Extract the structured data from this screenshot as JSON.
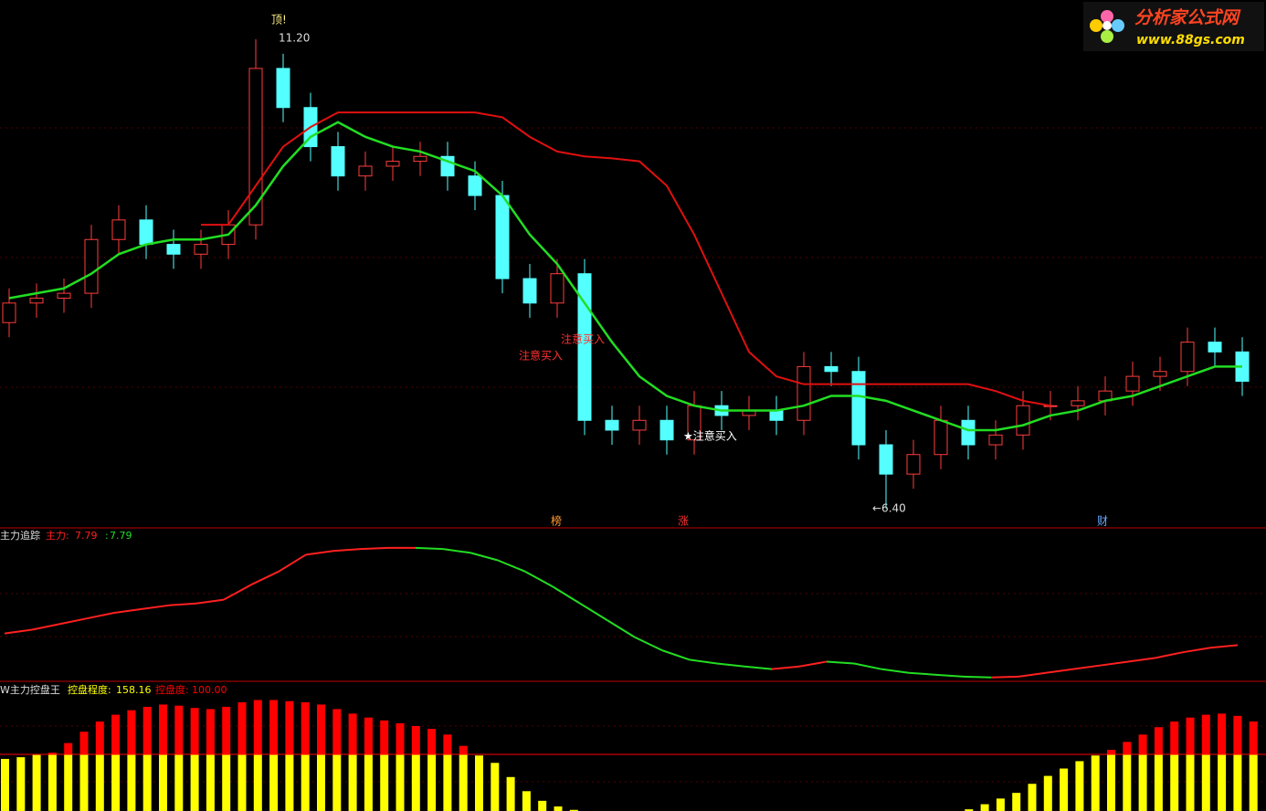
{
  "logo": {
    "title": "分析家公式网",
    "url": "www.88gs.com"
  },
  "chart_data": [
    {
      "type": "candlestick",
      "open": [
        8.3,
        8.5,
        8.55,
        8.6,
        9.15,
        9.35,
        9.1,
        9.0,
        9.1,
        9.3,
        10.9,
        10.5,
        10.1,
        9.8,
        9.9,
        9.95,
        10.0,
        9.8,
        9.6,
        8.75,
        8.5,
        8.8,
        7.3,
        7.2,
        7.3,
        7.1,
        7.45,
        7.35,
        7.4,
        7.3,
        7.85,
        7.8,
        7.05,
        6.75,
        6.95,
        7.3,
        7.05,
        7.15,
        7.45,
        7.45,
        7.5,
        7.6,
        7.75,
        7.8,
        8.1,
        8.0
      ],
      "high": [
        8.65,
        8.7,
        8.75,
        9.3,
        9.5,
        9.5,
        9.25,
        9.25,
        9.45,
        11.2,
        11.05,
        10.65,
        10.25,
        10.05,
        10.1,
        10.15,
        10.15,
        9.95,
        9.75,
        8.9,
        8.95,
        8.95,
        7.45,
        7.45,
        7.45,
        7.6,
        7.6,
        7.55,
        7.55,
        8.0,
        8.0,
        7.95,
        7.2,
        7.1,
        7.45,
        7.45,
        7.3,
        7.6,
        7.6,
        7.65,
        7.75,
        7.9,
        7.95,
        8.25,
        8.25,
        8.15
      ],
      "low": [
        8.15,
        8.35,
        8.4,
        8.45,
        9.0,
        8.95,
        8.85,
        8.85,
        8.95,
        9.15,
        10.35,
        9.95,
        9.65,
        9.65,
        9.75,
        9.8,
        9.65,
        9.45,
        8.6,
        8.35,
        8.35,
        7.15,
        7.05,
        7.05,
        6.95,
        6.95,
        7.2,
        7.2,
        7.15,
        7.15,
        7.65,
        6.9,
        6.4,
        6.6,
        6.8,
        6.9,
        6.9,
        7.0,
        7.3,
        7.3,
        7.35,
        7.45,
        7.6,
        7.65,
        7.85,
        7.55
      ],
      "close": [
        8.5,
        8.55,
        8.6,
        9.15,
        9.35,
        9.1,
        9.0,
        9.1,
        9.3,
        10.9,
        10.5,
        10.1,
        9.8,
        9.9,
        9.95,
        10.0,
        9.8,
        9.6,
        8.75,
        8.5,
        8.8,
        7.3,
        7.2,
        7.3,
        7.1,
        7.45,
        7.35,
        7.4,
        7.3,
        7.85,
        7.8,
        7.05,
        6.75,
        6.95,
        7.3,
        7.05,
        7.15,
        7.45,
        7.45,
        7.5,
        7.6,
        7.75,
        7.8,
        8.1,
        8.0,
        7.7
      ],
      "up_color": "#ff3c3c",
      "down_color": "#54ffff",
      "series": [
        {
          "color": "#22dd22",
          "values": [
            8.55,
            8.6,
            8.65,
            8.8,
            9.0,
            9.1,
            9.15,
            9.15,
            9.2,
            9.5,
            9.9,
            10.2,
            10.35,
            10.2,
            10.1,
            10.05,
            9.95,
            9.85,
            9.6,
            9.2,
            8.9,
            8.5,
            8.1,
            7.75,
            7.55,
            7.45,
            7.4,
            7.4,
            7.4,
            7.45,
            7.55,
            7.55,
            7.5,
            7.4,
            7.3,
            7.2,
            7.2,
            7.25,
            7.35,
            7.4,
            7.5,
            7.55,
            7.65,
            7.75,
            7.85,
            7.85
          ]
        },
        {
          "color": "#e01010",
          "values": [
            null,
            null,
            null,
            null,
            null,
            null,
            null,
            9.3,
            9.3,
            9.7,
            10.1,
            10.3,
            10.45,
            10.45,
            10.45,
            10.45,
            10.45,
            10.45,
            10.4,
            10.2,
            10.05,
            10.0,
            9.98,
            9.95,
            9.7,
            9.2,
            8.6,
            8.0,
            7.75,
            7.67,
            7.67,
            7.67,
            7.67,
            7.67,
            7.67,
            7.67,
            7.6,
            7.5,
            7.45,
            null,
            null,
            null,
            null,
            null,
            null,
            null
          ]
        }
      ],
      "ylim": [
        6.2,
        11.6
      ],
      "annotations": [
        "顶!",
        "11.20",
        "←6.40",
        "注意买入",
        "注意买入",
        "★注意买入",
        "榜",
        "涨",
        "财"
      ]
    },
    {
      "type": "line",
      "title": "主力追踪",
      "series": [
        {
          "name": "主力:",
          "color": "#ff2020",
          "values": [
            8.1,
            8.2,
            8.35,
            8.5,
            8.65,
            8.75,
            8.85,
            8.9,
            9.0,
            9.4,
            9.75,
            10.2,
            10.3,
            10.35,
            10.38,
            10.38,
            10.35,
            10.25,
            10.05,
            9.75,
            9.35,
            8.9,
            8.45,
            8.0,
            7.65,
            7.4,
            7.3,
            7.22,
            7.15,
            7.22,
            7.35,
            7.3,
            7.15,
            7.05,
            7.0,
            6.95,
            6.93,
            6.95,
            7.05,
            7.15,
            7.25,
            7.35,
            7.45,
            7.6,
            7.72,
            7.79
          ]
        },
        {
          "name": ":",
          "color": "#22dd22"
        }
      ],
      "ylim": [
        6.85,
        10.5
      ]
    },
    {
      "type": "bar",
      "title": "W主力控盘王",
      "series": [
        {
          "name": "控盘程度:",
          "color": "#ffff00",
          "values": [
            92,
            95,
            99,
            103,
            120,
            140,
            158,
            170,
            178,
            184,
            188,
            186,
            182,
            180,
            184,
            192,
            196,
            196,
            194,
            192,
            188,
            180,
            172,
            165,
            160,
            155,
            150,
            145,
            135,
            115,
            98,
            85,
            60,
            35,
            18,
            8,
            2,
            0,
            0,
            0,
            0,
            0,
            0,
            0,
            0,
            0,
            0,
            0,
            0,
            0,
            0,
            0,
            0,
            0,
            0,
            0,
            0,
            0,
            0,
            0,
            0,
            3,
            12,
            22,
            32,
            48,
            62,
            75,
            88,
            98,
            108,
            122,
            135,
            148,
            158,
            165,
            170,
            172,
            168,
            158.16
          ]
        },
        {
          "name": "控盘度:",
          "color": "#ff0000",
          "values": [
            100
          ],
          "value_labels": [
            "100.00"
          ]
        }
      ],
      "ylim": [
        0,
        200
      ]
    }
  ]
}
